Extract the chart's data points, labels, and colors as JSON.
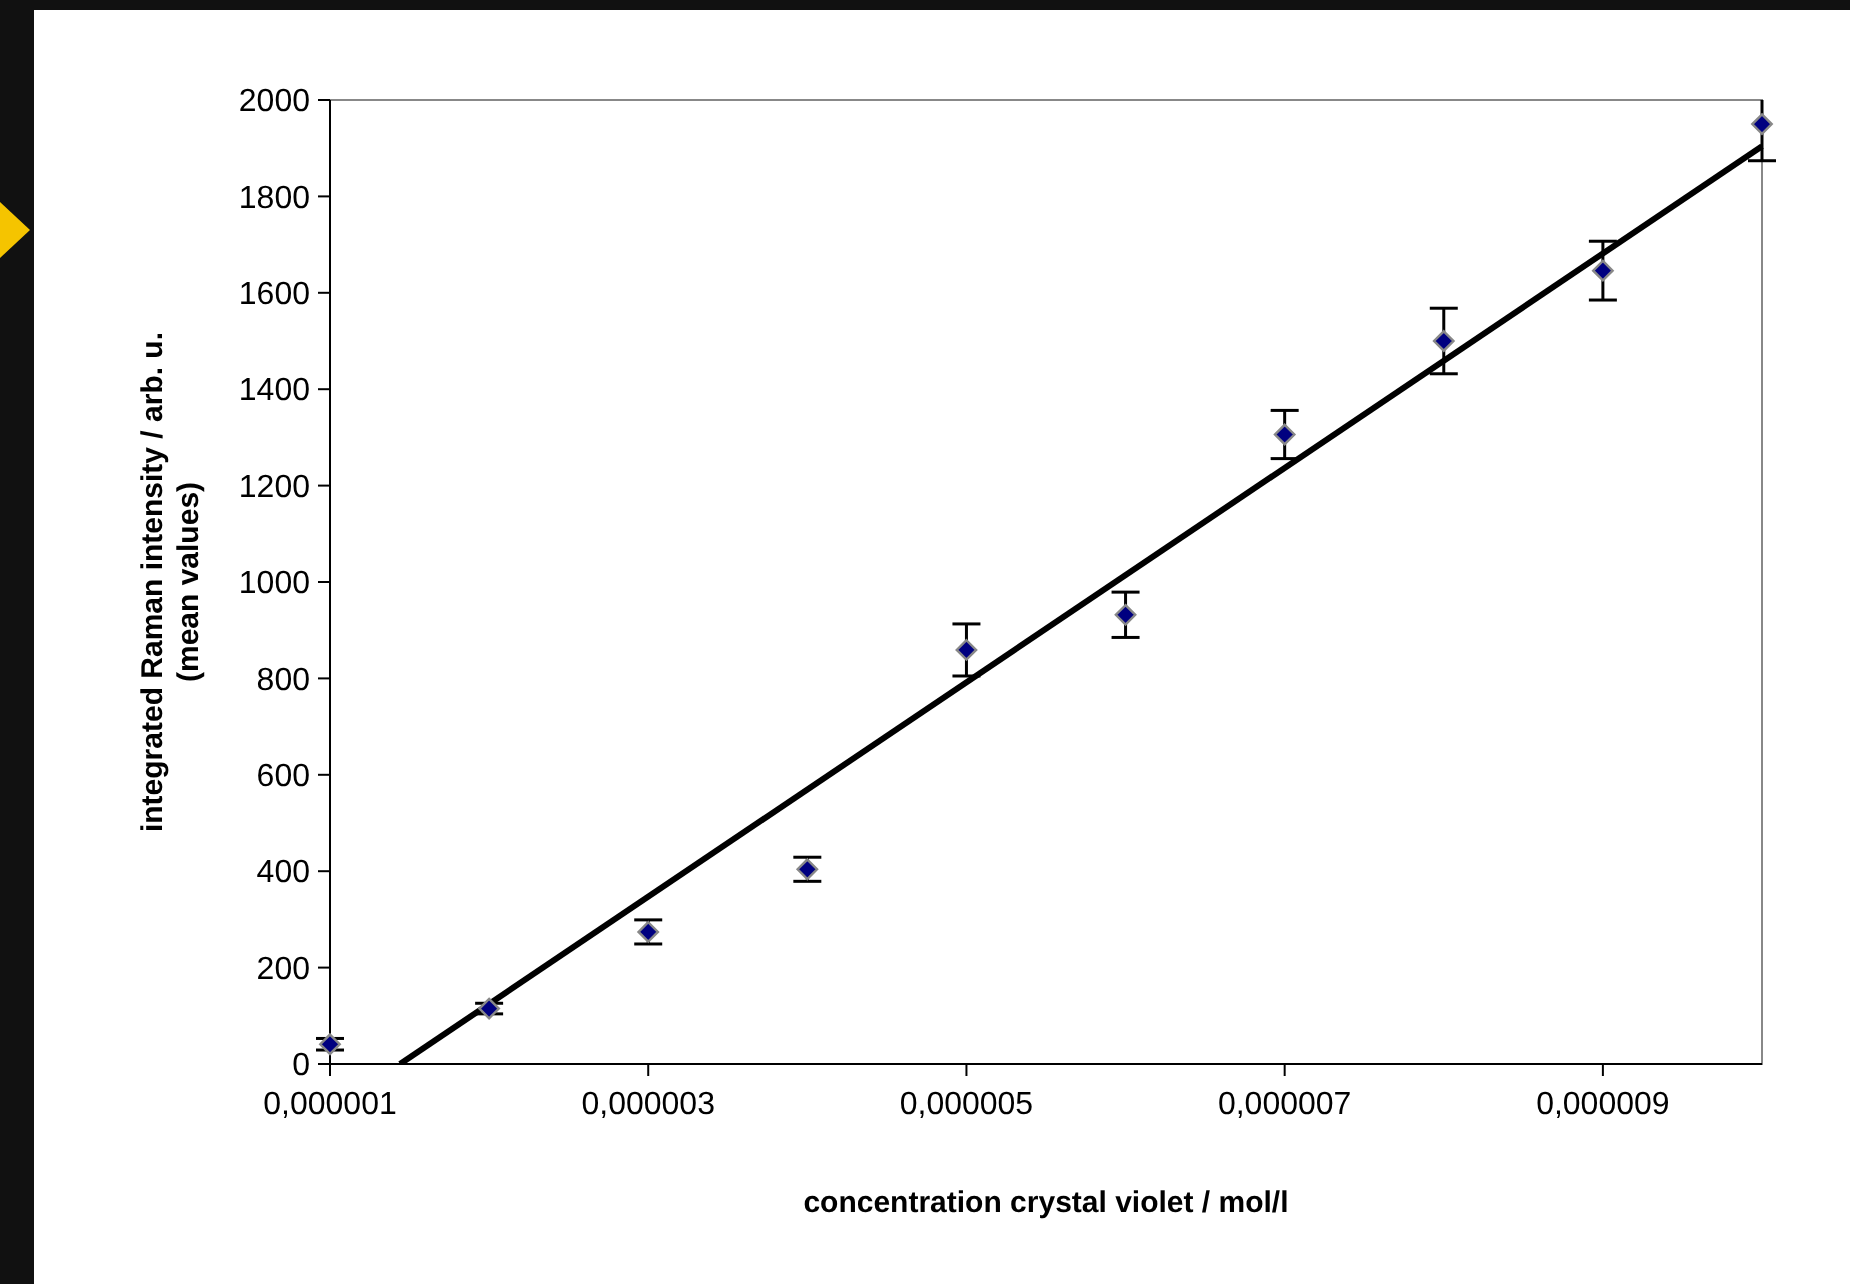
{
  "chart_data": {
    "type": "scatter",
    "xlabel": "concentration crystal violet / mol/l",
    "ylabel": "integrated Raman intensity / arb. u.\n(mean values)",
    "xlim": [
      1e-06,
      1e-05
    ],
    "xticks": [
      {
        "value": 1e-06,
        "label": "0,000001"
      },
      {
        "value": 3e-06,
        "label": "0,000003"
      },
      {
        "value": 5e-06,
        "label": "0,000005"
      },
      {
        "value": 7e-06,
        "label": "0,000007"
      },
      {
        "value": 9e-06,
        "label": "0,000009"
      }
    ],
    "ylim": [
      0,
      2000
    ],
    "yticks": [
      0,
      200,
      400,
      600,
      800,
      1000,
      1200,
      1400,
      1600,
      1800,
      2000
    ],
    "grid": false,
    "marker": "diamond",
    "series": [
      {
        "color": "#000080",
        "x": [
          1e-06,
          2e-06,
          3e-06,
          4e-06,
          5e-06,
          6e-06,
          7e-06,
          8e-06,
          9e-06,
          1e-05
        ],
        "values": [
          41,
          115,
          274,
          404,
          859,
          932,
          1306,
          1500,
          1646,
          1950
        ],
        "errors": [
          12,
          11,
          25,
          25,
          54,
          47,
          50,
          68,
          61,
          [
            1874,
            2000
          ]
        ]
      },
      {
        "type": "line",
        "color": "#000000",
        "marker": "none",
        "line_style": "solid",
        "x": [
          1.44e-06,
          1e-05
        ],
        "values": [
          0,
          1904
        ]
      }
    ]
  }
}
